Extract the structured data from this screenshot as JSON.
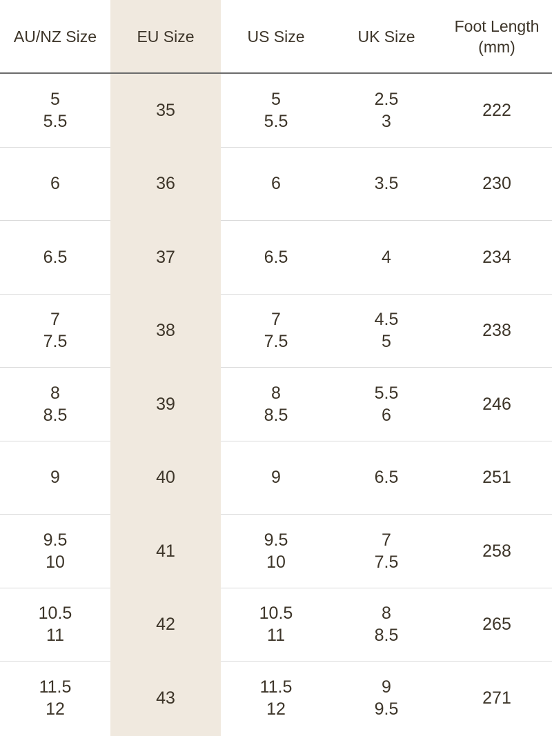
{
  "highlight_color": "#f0e9df",
  "headers": [
    "AU/NZ Size",
    "EU Size",
    "US Size",
    "UK Size",
    "Foot Length\n(mm)"
  ],
  "rows": [
    [
      [
        "5",
        "5.5"
      ],
      [
        "35"
      ],
      [
        "5",
        "5.5"
      ],
      [
        "2.5",
        "3"
      ],
      [
        "222"
      ]
    ],
    [
      [
        "6"
      ],
      [
        "36"
      ],
      [
        "6"
      ],
      [
        "3.5"
      ],
      [
        "230"
      ]
    ],
    [
      [
        "6.5"
      ],
      [
        "37"
      ],
      [
        "6.5"
      ],
      [
        "4"
      ],
      [
        "234"
      ]
    ],
    [
      [
        "7",
        "7.5"
      ],
      [
        "38"
      ],
      [
        "7",
        "7.5"
      ],
      [
        "4.5",
        "5"
      ],
      [
        "238"
      ]
    ],
    [
      [
        "8",
        "8.5"
      ],
      [
        "39"
      ],
      [
        "8",
        "8.5"
      ],
      [
        "5.5",
        "6"
      ],
      [
        "246"
      ]
    ],
    [
      [
        "9"
      ],
      [
        "40"
      ],
      [
        "9"
      ],
      [
        "6.5"
      ],
      [
        "251"
      ]
    ],
    [
      [
        "9.5",
        "10"
      ],
      [
        "41"
      ],
      [
        "9.5",
        "10"
      ],
      [
        "7",
        "7.5"
      ],
      [
        "258"
      ]
    ],
    [
      [
        "10.5",
        "11"
      ],
      [
        "42"
      ],
      [
        "10.5",
        "11"
      ],
      [
        "8",
        "8.5"
      ],
      [
        "265"
      ]
    ],
    [
      [
        "11.5",
        "12"
      ],
      [
        "43"
      ],
      [
        "11.5",
        "12"
      ],
      [
        "9",
        "9.5"
      ],
      [
        "271"
      ]
    ]
  ]
}
